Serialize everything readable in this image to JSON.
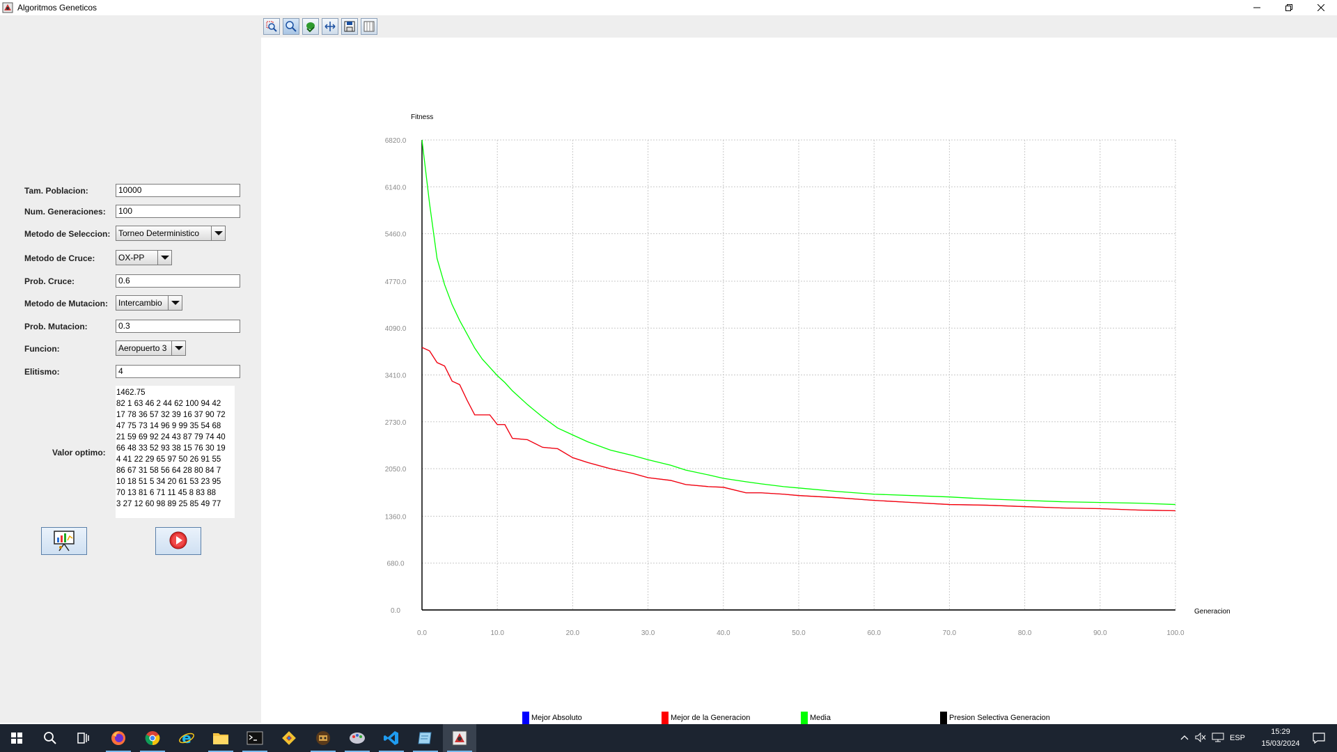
{
  "window": {
    "title": "Algoritmos Geneticos",
    "minimize_icon": "minimize-icon",
    "maximize_icon": "restore-icon",
    "close_icon": "close-icon"
  },
  "form": {
    "tam_poblacion": {
      "label": "Tam. Poblacion:",
      "value": "10000"
    },
    "num_generaciones": {
      "label": "Num. Generaciones:",
      "value": "100"
    },
    "metodo_seleccion": {
      "label": "Metodo de Seleccion:",
      "value": "Torneo Deterministico"
    },
    "metodo_cruce": {
      "label": "Metodo de Cruce:",
      "value": "OX-PP"
    },
    "prob_cruce": {
      "label": "Prob. Cruce:",
      "value": "0.6"
    },
    "metodo_mutacion": {
      "label": "Metodo de Mutacion:",
      "value": "Intercambio"
    },
    "prob_mutacion": {
      "label": "Prob. Mutacion:",
      "value": "0.3"
    },
    "funcion": {
      "label": "Funcion:",
      "value": "Aeropuerto 3"
    },
    "elitismo": {
      "label": "Elitismo:",
      "value": "4"
    },
    "valor_optimo": {
      "label": "Valor optimo:",
      "lines": [
        "1462.75",
        "82 1 63 46 2 44 62 100 94 42",
        "17 78 36 57 32 39 16 37 90 72",
        "47 75 73 14 96 9 99 35 54 68",
        "21 59 69 92 24 43 87 79 74 40",
        "66 48 33 52 93 38 15 76 30 19",
        "4 41 22 29 65 97 50 26 91 55",
        "86 67 31 58 56 64 28 80 84 7",
        "10 18 51 5 34 20 61 53 23 95",
        "70 13 81 6 71 11 45 8 83 88",
        "3 27 12 60 98 89 25 85 49 77"
      ]
    }
  },
  "buttons": {
    "chart_button_icon": "chart-presentation-icon",
    "run_button_icon": "play-icon"
  },
  "toolbar": {
    "icons": [
      "zoom-region-icon",
      "zoom-icon",
      "pan-icon",
      "fit-to-view-icon",
      "save-icon",
      "grid-toggle-icon"
    ]
  },
  "chart_data": {
    "type": "line",
    "title": "",
    "xlabel": "Generacion",
    "ylabel": "Fitness",
    "xlim": [
      0,
      100
    ],
    "ylim": [
      0,
      6820
    ],
    "x_ticks": [
      "0.0",
      "10.0",
      "20.0",
      "30.0",
      "40.0",
      "50.0",
      "60.0",
      "70.0",
      "80.0",
      "90.0",
      "100.0"
    ],
    "y_ticks": [
      "0.0",
      "680.0",
      "1360.0",
      "2050.0",
      "2730.0",
      "3410.0",
      "4090.0",
      "4770.0",
      "5460.0",
      "6140.0",
      "6820.0"
    ],
    "grid": true,
    "legend_position": "bottom",
    "x": [
      0,
      1,
      2,
      3,
      4,
      5,
      6,
      7,
      8,
      9,
      10,
      11,
      12,
      14,
      16,
      18,
      20,
      22,
      25,
      28,
      30,
      33,
      35,
      38,
      40,
      43,
      45,
      48,
      50,
      55,
      60,
      65,
      70,
      75,
      80,
      85,
      90,
      95,
      100
    ],
    "series": [
      {
        "name": "Mejor Absoluto",
        "color": "#0000ff",
        "values": [
          3810,
          3760,
          3590,
          3540,
          3320,
          3270,
          3040,
          2830,
          2830,
          2830,
          2690,
          2690,
          2490,
          2470,
          2360,
          2340,
          2210,
          2140,
          2050,
          1980,
          1920,
          1880,
          1820,
          1790,
          1780,
          1700,
          1700,
          1680,
          1660,
          1630,
          1590,
          1560,
          1530,
          1520,
          1500,
          1480,
          1470,
          1450,
          1440
        ]
      },
      {
        "name": "Mejor de la Generacion",
        "color": "#ff0000",
        "values": [
          3810,
          3760,
          3590,
          3540,
          3320,
          3270,
          3040,
          2830,
          2830,
          2830,
          2690,
          2690,
          2490,
          2470,
          2360,
          2340,
          2210,
          2140,
          2050,
          1980,
          1920,
          1880,
          1820,
          1790,
          1780,
          1700,
          1700,
          1680,
          1660,
          1630,
          1590,
          1560,
          1530,
          1520,
          1500,
          1480,
          1470,
          1450,
          1440
        ]
      },
      {
        "name": "Media",
        "color": "#00ff00",
        "values": [
          6820,
          5900,
          5100,
          4720,
          4430,
          4200,
          4000,
          3800,
          3640,
          3520,
          3400,
          3300,
          3180,
          2980,
          2800,
          2640,
          2540,
          2440,
          2320,
          2240,
          2180,
          2100,
          2030,
          1960,
          1910,
          1860,
          1830,
          1790,
          1770,
          1720,
          1680,
          1660,
          1640,
          1610,
          1590,
          1570,
          1560,
          1550,
          1530
        ]
      },
      {
        "name": "Presion Selectiva Generacion",
        "color": "#000000",
        "values": [
          0,
          0,
          0,
          0,
          0,
          0,
          0,
          0,
          0,
          0,
          0,
          0,
          0,
          0,
          0,
          0,
          0,
          0,
          0,
          0,
          0,
          0,
          0,
          0,
          0,
          0,
          0,
          0,
          0,
          0,
          0,
          0,
          0,
          0,
          0,
          0,
          0,
          0,
          0
        ]
      }
    ]
  },
  "taskbar": {
    "items": [
      "windows-start-icon",
      "search-icon",
      "task-view-icon",
      "firefox-icon",
      "chrome-icon",
      "internet-explorer-icon",
      "file-explorer-icon",
      "terminal-icon",
      "git-icon",
      "game-app-icon",
      "paint-app-icon",
      "vscode-icon",
      "notepad-icon",
      "java-app-icon"
    ],
    "language": "ESP",
    "time": "15:29",
    "date": "15/03/2024"
  }
}
